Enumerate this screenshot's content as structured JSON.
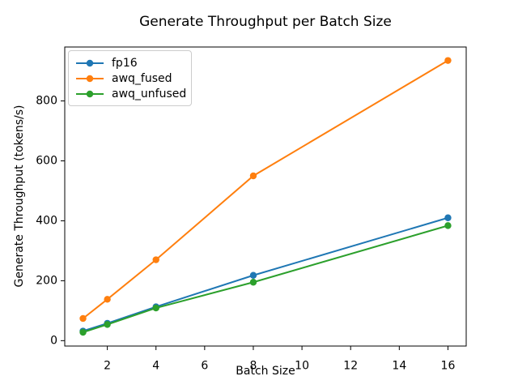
{
  "chart_data": {
    "type": "line",
    "title": "Generate Throughput per Batch Size",
    "xlabel": "Batch Size",
    "ylabel": "Generate Throughput (tokens/s)",
    "x": [
      1,
      2,
      4,
      8,
      16
    ],
    "series": [
      {
        "name": "fp16",
        "color": "#1f77b4",
        "values": [
          32,
          58,
          113,
          218,
          410
        ]
      },
      {
        "name": "awq_fused",
        "color": "#ff7f0e",
        "values": [
          74,
          138,
          270,
          550,
          935
        ]
      },
      {
        "name": "awq_unfused",
        "color": "#2ca02c",
        "values": [
          28,
          54,
          109,
          195,
          384
        ]
      }
    ],
    "xticks": [
      2,
      4,
      6,
      8,
      10,
      12,
      14,
      16
    ],
    "yticks": [
      0,
      200,
      400,
      600,
      800
    ],
    "xlim": [
      0.25,
      16.75
    ],
    "ylim": [
      -18,
      980
    ],
    "grid": false,
    "legend_position": "upper left",
    "marker": "o",
    "line_width": 2,
    "marker_radius": 4.2,
    "axis_color": "#000000",
    "background_color": "#ffffff"
  }
}
